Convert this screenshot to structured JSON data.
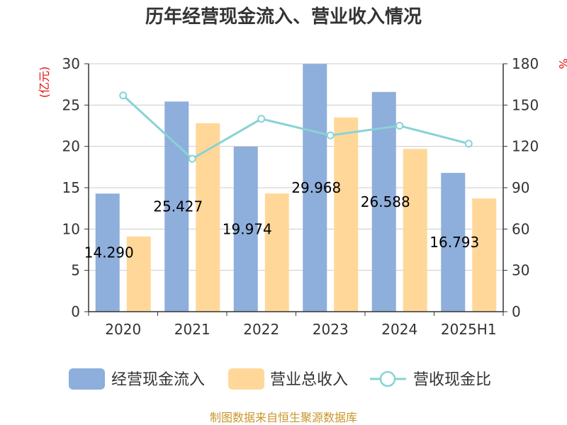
{
  "chart_data": {
    "type": "bar",
    "title": "历年经营现金流入、营业收入情况",
    "left_axis_unit": "(亿元)",
    "right_axis_unit": "%",
    "categories": [
      "2020",
      "2021",
      "2022",
      "2023",
      "2024",
      "2025H1"
    ],
    "series": [
      {
        "name": "经营现金流入",
        "type": "bar",
        "axis": "left",
        "values": [
          14.29,
          25.427,
          19.974,
          29.968,
          26.588,
          16.793
        ],
        "labels": [
          "14.290",
          "25.427",
          "19.974",
          "29.968",
          "26.588",
          "16.793"
        ]
      },
      {
        "name": "营业总收入",
        "type": "bar",
        "axis": "left",
        "values": [
          9.1,
          22.8,
          14.3,
          23.5,
          19.7,
          13.7
        ]
      },
      {
        "name": "营收现金比",
        "type": "line",
        "axis": "right",
        "values": [
          157,
          111,
          140,
          128,
          135,
          122
        ]
      }
    ],
    "y_left": {
      "min": 0,
      "max": 30,
      "ticks": [
        "0",
        "5",
        "10",
        "15",
        "20",
        "25",
        "30"
      ]
    },
    "y_right": {
      "min": 0,
      "max": 180,
      "ticks": [
        "0",
        "30",
        "60",
        "90",
        "120",
        "150",
        "180"
      ]
    },
    "grid": true,
    "legend_position": "bottom"
  },
  "colors": {
    "cash_inflow": "#8eaedb",
    "revenue": "#ffd899",
    "ratio_line": "#88d3d5",
    "grid": "#cccccc",
    "axis": "#333333",
    "unit_red": "#e01010",
    "footer": "#c9962a"
  },
  "footer": "制图数据来自恒生聚源数据库"
}
